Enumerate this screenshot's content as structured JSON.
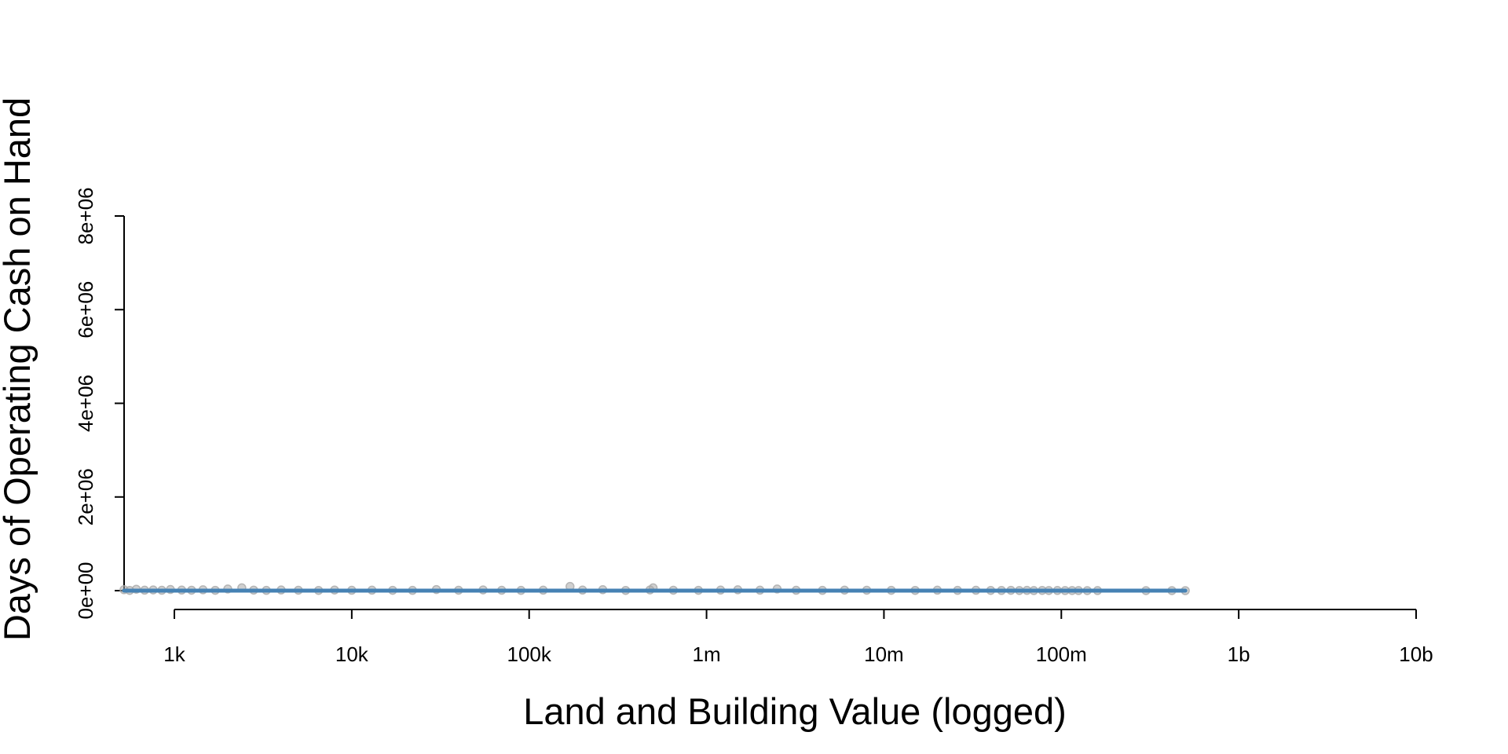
{
  "chart_data": {
    "type": "scatter",
    "title": "",
    "xlabel": "Land and Building Value (logged)",
    "ylabel": "Days of Operating Cash on Hand",
    "x_scale": "log10",
    "xlim": [
      500,
      10000000000
    ],
    "ylim": [
      0,
      8000000
    ],
    "x_ticks": [
      {
        "value": 1000,
        "label": "1k"
      },
      {
        "value": 10000,
        "label": "10k"
      },
      {
        "value": 100000,
        "label": "100k"
      },
      {
        "value": 1000000,
        "label": "1m"
      },
      {
        "value": 10000000,
        "label": "10m"
      },
      {
        "value": 100000000,
        "label": "100m"
      },
      {
        "value": 1000000000,
        "label": "1b"
      },
      {
        "value": 10000000000,
        "label": "10b"
      }
    ],
    "y_ticks": [
      {
        "value": 0,
        "label": "0e+00"
      },
      {
        "value": 2000000,
        "label": "2e+06"
      },
      {
        "value": 4000000,
        "label": "4e+06"
      },
      {
        "value": 6000000,
        "label": "6e+06"
      },
      {
        "value": 8000000,
        "label": "8e+06"
      }
    ],
    "grid": false,
    "legend": "none",
    "point_color": "#a9a9a9",
    "line_color": "#4682b4",
    "series": [
      {
        "kind": "points",
        "x": [
          520,
          560,
          610,
          680,
          760,
          850,
          950,
          1100,
          1250,
          1450,
          1700,
          2000,
          2400,
          2800,
          3300,
          4000,
          5000,
          6500,
          8000,
          10000,
          13000,
          17000,
          22000,
          30000,
          40000,
          55000,
          70000,
          90000,
          120000,
          170000,
          200000,
          260000,
          350000,
          480000,
          500000,
          650000,
          900000,
          1200000,
          1500000,
          2000000,
          2500000,
          3200000,
          4500000,
          6000000,
          8000000,
          11000000,
          15000000,
          20000000,
          26000000,
          33000000,
          40000000,
          46000000,
          52000000,
          58000000,
          64000000,
          70000000,
          78000000,
          85000000,
          95000000,
          105000000,
          115000000,
          125000000,
          140000000,
          160000000,
          300000000,
          420000000,
          500000000
        ],
        "y": [
          20000,
          5000,
          30000,
          10000,
          15000,
          8000,
          25000,
          12000,
          9000,
          18000,
          7000,
          35000,
          60000,
          11000,
          6000,
          14000,
          9000,
          5000,
          13000,
          8000,
          10000,
          7000,
          6000,
          24000,
          9000,
          15000,
          8000,
          6000,
          10000,
          90000,
          12000,
          20000,
          5000,
          15000,
          60000,
          9000,
          7000,
          12000,
          18000,
          10000,
          35000,
          8000,
          6000,
          11000,
          9000,
          7000,
          5000,
          10000,
          6000,
          8000,
          5000,
          4000,
          7000,
          3000,
          6000,
          2000,
          5000,
          3000,
          4000,
          2000,
          3000,
          2000,
          1000,
          2000,
          1000,
          1000,
          0
        ]
      },
      {
        "kind": "line",
        "x": [
          520,
          5000,
          50000,
          500000,
          5000000,
          50000000,
          200000000,
          500000000
        ],
        "y": [
          0,
          0,
          0,
          0,
          0,
          0,
          0,
          0
        ]
      }
    ]
  }
}
